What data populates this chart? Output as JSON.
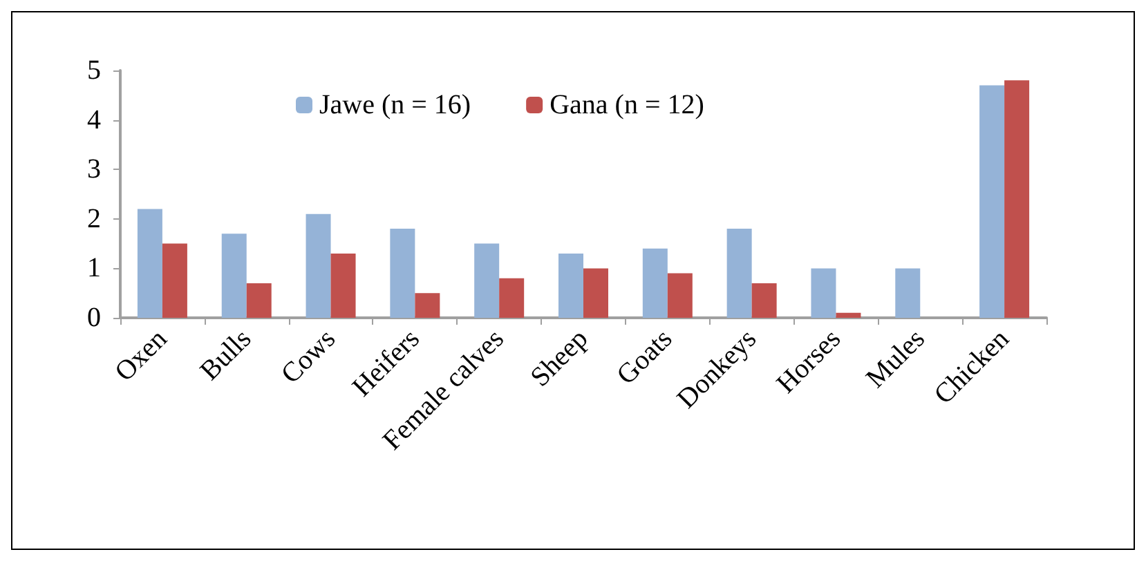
{
  "chart_data": {
    "type": "bar",
    "categories": [
      "Oxen",
      "Bulls",
      "Cows",
      "Heifers",
      "Female calves",
      "Sheep",
      "Goats",
      "Donkeys",
      "Horses",
      "Mules",
      "Chicken"
    ],
    "series": [
      {
        "name": "Jawe (n = 16)",
        "color": "#95b3d7",
        "values": [
          2.2,
          1.7,
          2.1,
          1.8,
          1.5,
          1.3,
          1.4,
          1.8,
          1.0,
          1.0,
          4.7
        ]
      },
      {
        "name": "Gana (n = 12)",
        "color": "#c0504d",
        "values": [
          1.5,
          0.7,
          1.3,
          0.5,
          0.8,
          1.0,
          0.9,
          0.7,
          0.1,
          0.0,
          4.8
        ]
      }
    ],
    "ylim": [
      0,
      5
    ],
    "yticks": [
      0,
      1,
      2,
      3,
      4,
      5
    ],
    "grid": false,
    "legend": "top"
  }
}
